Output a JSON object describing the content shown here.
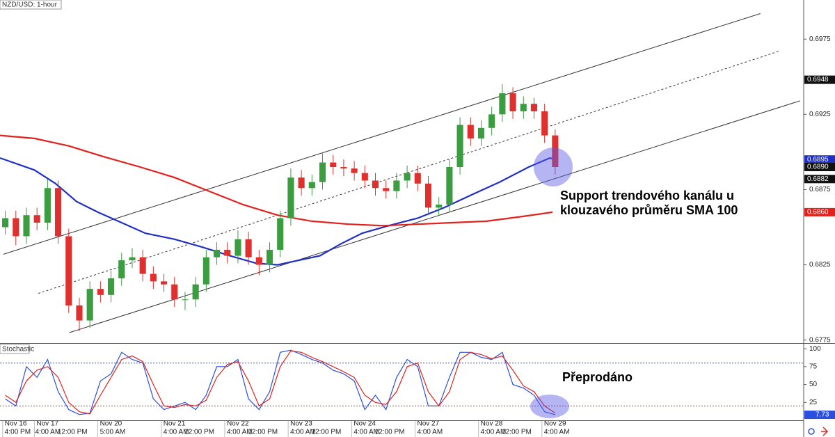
{
  "chart_data": [
    {
      "type": "candlestick",
      "title": "NZD/USD: 1-hour",
      "x": [
        2,
        6,
        10,
        14,
        18,
        22,
        26,
        30,
        34,
        38,
        42,
        46,
        50,
        54,
        58,
        62,
        66,
        70,
        74,
        78,
        82,
        86,
        90,
        94,
        98,
        102,
        106,
        110,
        114,
        118,
        122,
        126,
        130,
        134,
        138,
        142,
        146,
        150,
        154,
        158,
        162,
        166,
        170,
        174,
        178,
        182,
        186,
        190,
        194,
        198,
        202,
        206,
        210
      ],
      "open": [
        0.685,
        0.6856,
        0.6844,
        0.6858,
        0.6853,
        0.6876,
        0.6844,
        0.6798,
        0.6788,
        0.6809,
        0.6805,
        0.6816,
        0.6828,
        0.683,
        0.6819,
        0.6814,
        0.6812,
        0.6802,
        0.6802,
        0.6812,
        0.683,
        0.6835,
        0.6831,
        0.6842,
        0.683,
        0.6825,
        0.6835,
        0.6856,
        0.6883,
        0.6876,
        0.688,
        0.6893,
        0.689,
        0.6889,
        0.6886,
        0.6881,
        0.6876,
        0.6874,
        0.6881,
        0.6886,
        0.6879,
        0.6863,
        0.6865,
        0.689,
        0.6918,
        0.6909,
        0.6916,
        0.6925,
        0.6939,
        0.6927,
        0.6932,
        0.6927,
        0.6911
      ],
      "high": [
        0.6861,
        0.6861,
        0.6863,
        0.6863,
        0.6882,
        0.6881,
        0.6849,
        0.6803,
        0.6814,
        0.6814,
        0.6821,
        0.6833,
        0.6836,
        0.6835,
        0.6824,
        0.6819,
        0.6817,
        0.6807,
        0.6817,
        0.6835,
        0.684,
        0.684,
        0.6848,
        0.6847,
        0.6835,
        0.684,
        0.6861,
        0.6889,
        0.6888,
        0.6885,
        0.6899,
        0.6898,
        0.6895,
        0.6894,
        0.6891,
        0.6886,
        0.6881,
        0.6886,
        0.6891,
        0.6891,
        0.6884,
        0.687,
        0.6895,
        0.6923,
        0.6923,
        0.6921,
        0.693,
        0.6945,
        0.6943,
        0.6937,
        0.6936,
        0.6932,
        0.6915
      ],
      "low": [
        0.6845,
        0.6838,
        0.6839,
        0.6848,
        0.6848,
        0.6839,
        0.6793,
        0.6781,
        0.6783,
        0.68,
        0.68,
        0.6811,
        0.6823,
        0.6814,
        0.6809,
        0.6807,
        0.6797,
        0.6795,
        0.6797,
        0.6807,
        0.6825,
        0.6826,
        0.6826,
        0.6825,
        0.6818,
        0.682,
        0.683,
        0.6851,
        0.6871,
        0.6871,
        0.6875,
        0.6885,
        0.6884,
        0.6881,
        0.6876,
        0.6871,
        0.6869,
        0.6869,
        0.6876,
        0.6874,
        0.6858,
        0.6858,
        0.686,
        0.6885,
        0.6904,
        0.6904,
        0.6911,
        0.692,
        0.6922,
        0.6922,
        0.6922,
        0.6906,
        0.6885
      ],
      "close": [
        0.6856,
        0.6844,
        0.6858,
        0.6853,
        0.6876,
        0.6844,
        0.6798,
        0.6788,
        0.6809,
        0.6805,
        0.6816,
        0.6828,
        0.683,
        0.6819,
        0.6814,
        0.6812,
        0.6802,
        0.6802,
        0.6812,
        0.683,
        0.6835,
        0.6831,
        0.6842,
        0.683,
        0.6825,
        0.6835,
        0.6856,
        0.6883,
        0.6876,
        0.688,
        0.6893,
        0.689,
        0.6889,
        0.6886,
        0.6881,
        0.6876,
        0.6874,
        0.6881,
        0.6886,
        0.6879,
        0.6863,
        0.6865,
        0.689,
        0.6918,
        0.6909,
        0.6916,
        0.6925,
        0.6939,
        0.6927,
        0.6932,
        0.6927,
        0.6911,
        0.689
      ],
      "up_color": "#3a9d3f",
      "down_color": "#e0302e",
      "series": [
        {
          "color": "#1f2fc4",
          "x": [
            0,
            13,
            21,
            29,
            37,
            46,
            55,
            66,
            76,
            87,
            97,
            105,
            113,
            121,
            129,
            137,
            147,
            158,
            168,
            179,
            189,
            200,
            208,
            210
          ],
          "values": [
            0.6896,
            0.6888,
            0.6879,
            0.6867,
            0.686,
            0.6853,
            0.6846,
            0.6842,
            0.6837,
            0.6831,
            0.6826,
            0.6825,
            0.6828,
            0.6831,
            0.6839,
            0.6846,
            0.6851,
            0.6856,
            0.6863,
            0.6872,
            0.688,
            0.689,
            0.6896,
            0.6895
          ]
        },
        {
          "color": "#e3201b",
          "x": [
            0,
            13,
            26,
            39,
            53,
            66,
            79,
            92,
            105,
            118,
            132,
            145,
            158,
            171,
            184,
            197,
            209
          ],
          "values": [
            0.6911,
            0.6909,
            0.6904,
            0.6897,
            0.689,
            0.6883,
            0.6874,
            0.6865,
            0.6858,
            0.6854,
            0.6852,
            0.6851,
            0.6852,
            0.6853,
            0.6854,
            0.6857,
            0.686
          ]
        }
      ],
      "trendlines": [
        {
          "x": [
            1.3,
            287.6
          ],
          "values": [
            0.6832,
            0.6992
          ],
          "dashed": false
        },
        {
          "x": [
            14.5,
            294.7
          ],
          "values": [
            0.6806,
            0.6967
          ],
          "dashed": true
        },
        {
          "x": [
            26.3,
            302.6
          ],
          "values": [
            0.678,
            0.6934
          ],
          "dashed": false
        }
      ],
      "price_tags": [
        {
          "value": 0.6948,
          "label": "0.6948",
          "color": "#111111"
        },
        {
          "value": 0.6895,
          "label": "0.6895",
          "color": "#1f2fc4"
        },
        {
          "value": 0.689,
          "label": "0.6890",
          "color": "#111111"
        },
        {
          "value": 0.6882,
          "label": "0.6882",
          "color": "#111111"
        },
        {
          "value": 0.686,
          "label": "0.6860",
          "color": "#e3201b"
        }
      ],
      "annotation": [
        "Support trendového kanálu u",
        "klouzavého průměru SMA 100"
      ],
      "xlim": [
        0,
        304
      ],
      "ylim": [
        0.6773,
        0.7001
      ],
      "yticks": [
        0.6975,
        0.6925,
        0.6875,
        0.6825,
        0.6775
      ],
      "xticks": [
        {
          "value": 1,
          "label": "4:00 PM"
        },
        {
          "value": 12.5,
          "label": "4:00 AM"
        },
        {
          "value": 21,
          "label": "12:00 PM"
        },
        {
          "value": 37,
          "label": "5:00 AM"
        },
        {
          "value": 61,
          "label": "4:00 AM"
        },
        {
          "value": 69,
          "label": "12:00 PM"
        },
        {
          "value": 85,
          "label": "4:00 AM"
        },
        {
          "value": 93,
          "label": "12:00 PM"
        },
        {
          "value": 109,
          "label": "4:00 AM"
        },
        {
          "value": 117,
          "label": "12:00 PM"
        },
        {
          "value": 133,
          "label": "4:00 AM"
        },
        {
          "value": 141,
          "label": "12:00 PM"
        },
        {
          "value": 157,
          "label": "4:00 AM"
        },
        {
          "value": 181,
          "label": "4:00 AM"
        },
        {
          "value": 189,
          "label": "12:00 PM"
        },
        {
          "value": 205,
          "label": "4:00 AM"
        }
      ]
    },
    {
      "type": "line",
      "title": "Stochastic",
      "x": [
        2,
        6,
        10,
        14,
        18,
        22,
        26,
        30,
        34,
        38,
        42,
        46,
        50,
        54,
        58,
        62,
        66,
        70,
        74,
        78,
        82,
        86,
        90,
        94,
        98,
        102,
        106,
        110,
        114,
        118,
        122,
        126,
        130,
        134,
        138,
        142,
        146,
        150,
        154,
        158,
        162,
        166,
        170,
        174,
        178,
        182,
        186,
        190,
        194,
        198,
        202,
        206,
        210
      ],
      "series": [
        {
          "color": "#2a4fe0",
          "values": [
            30,
            20,
            75,
            60,
            85,
            40,
            15,
            8,
            10,
            55,
            65,
            95,
            85,
            80,
            30,
            15,
            20,
            25,
            15,
            35,
            75,
            75,
            85,
            30,
            15,
            40,
            95,
            98,
            92,
            85,
            80,
            70,
            65,
            55,
            15,
            35,
            15,
            60,
            85,
            75,
            20,
            20,
            60,
            95,
            95,
            88,
            85,
            95,
            50,
            45,
            35,
            12,
            7.73
          ]
        },
        {
          "color": "#e3201b",
          "values": [
            35,
            25,
            55,
            70,
            75,
            60,
            25,
            12,
            9,
            35,
            60,
            85,
            90,
            82,
            50,
            20,
            18,
            22,
            20,
            28,
            60,
            78,
            82,
            55,
            20,
            30,
            75,
            97,
            95,
            88,
            82,
            75,
            68,
            60,
            35,
            25,
            22,
            40,
            75,
            80,
            40,
            20,
            40,
            85,
            95,
            92,
            86,
            90,
            70,
            48,
            40,
            20,
            10
          ]
        }
      ],
      "levels": [
        {
          "value": 80,
          "color": "#2a4fe0"
        },
        {
          "value": 20,
          "color": "#e3201b"
        }
      ],
      "value_tag": {
        "value": 7.73,
        "color": "#2a4fe0"
      },
      "annotation": "Přeprodáno",
      "xlim": [
        0,
        304
      ],
      "ylim": [
        0,
        106
      ],
      "yticks": [
        100,
        75,
        50,
        25
      ],
      "xticks": [
        {
          "value": 1,
          "label": "Nov 16"
        },
        {
          "value": 13,
          "label": "Nov 17"
        },
        {
          "value": 37,
          "label": "Nov 20"
        },
        {
          "value": 61,
          "label": "Nov 21"
        },
        {
          "value": 85,
          "label": "Nov 22"
        },
        {
          "value": 109,
          "label": "Nov 23"
        },
        {
          "value": 133,
          "label": "Nov 24"
        },
        {
          "value": 157,
          "label": "Nov 27"
        },
        {
          "value": 181,
          "label": "Nov 28"
        },
        {
          "value": 205,
          "label": "Nov 29"
        }
      ]
    }
  ]
}
